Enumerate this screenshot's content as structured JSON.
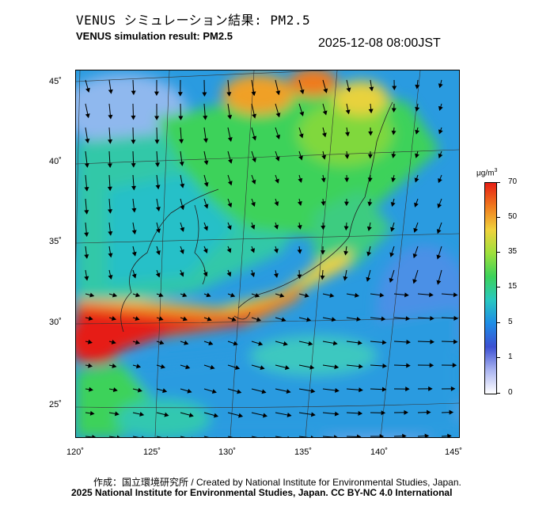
{
  "title_jp": "VENUS シミュレーション結果: PM2.5",
  "title_en": "VENUS simulation result: PM2.5",
  "timestamp": "2025-12-08 08:00JST",
  "map": {
    "lat_labels": [
      "45˚",
      "40˚",
      "35˚",
      "30˚",
      "25˚"
    ],
    "lon_labels": [
      "120˚",
      "125˚",
      "130˚",
      "135˚",
      "140˚",
      "145˚"
    ],
    "colors": {
      "ocean_base": "#2a9be0",
      "low": "#7fb8f0",
      "mid": "#28c8c0",
      "green": "#3cd25a",
      "yellow": "#f0d23c",
      "orange": "#f08c1e",
      "red": "#e61e14"
    }
  },
  "colorbar": {
    "unit": "μg/m",
    "unit_sup": "3",
    "ticks": [
      "70",
      "50",
      "35",
      "15",
      "5",
      "1",
      "0"
    ],
    "gradient": [
      "#e61e14",
      "#f07a1e",
      "#f0d23c",
      "#9ee03c",
      "#3cd25a",
      "#28c8c0",
      "#1e8ce6",
      "#3c50d2",
      "#aab4f0",
      "#ffffff"
    ]
  },
  "credits": {
    "line1": "作成：国立環境研究所 / Created by National Institute for Environmental Studies, Japan.",
    "line2": "2025 National Institute for Environmental Studies, Japan. CC BY-NC 4.0 International"
  }
}
